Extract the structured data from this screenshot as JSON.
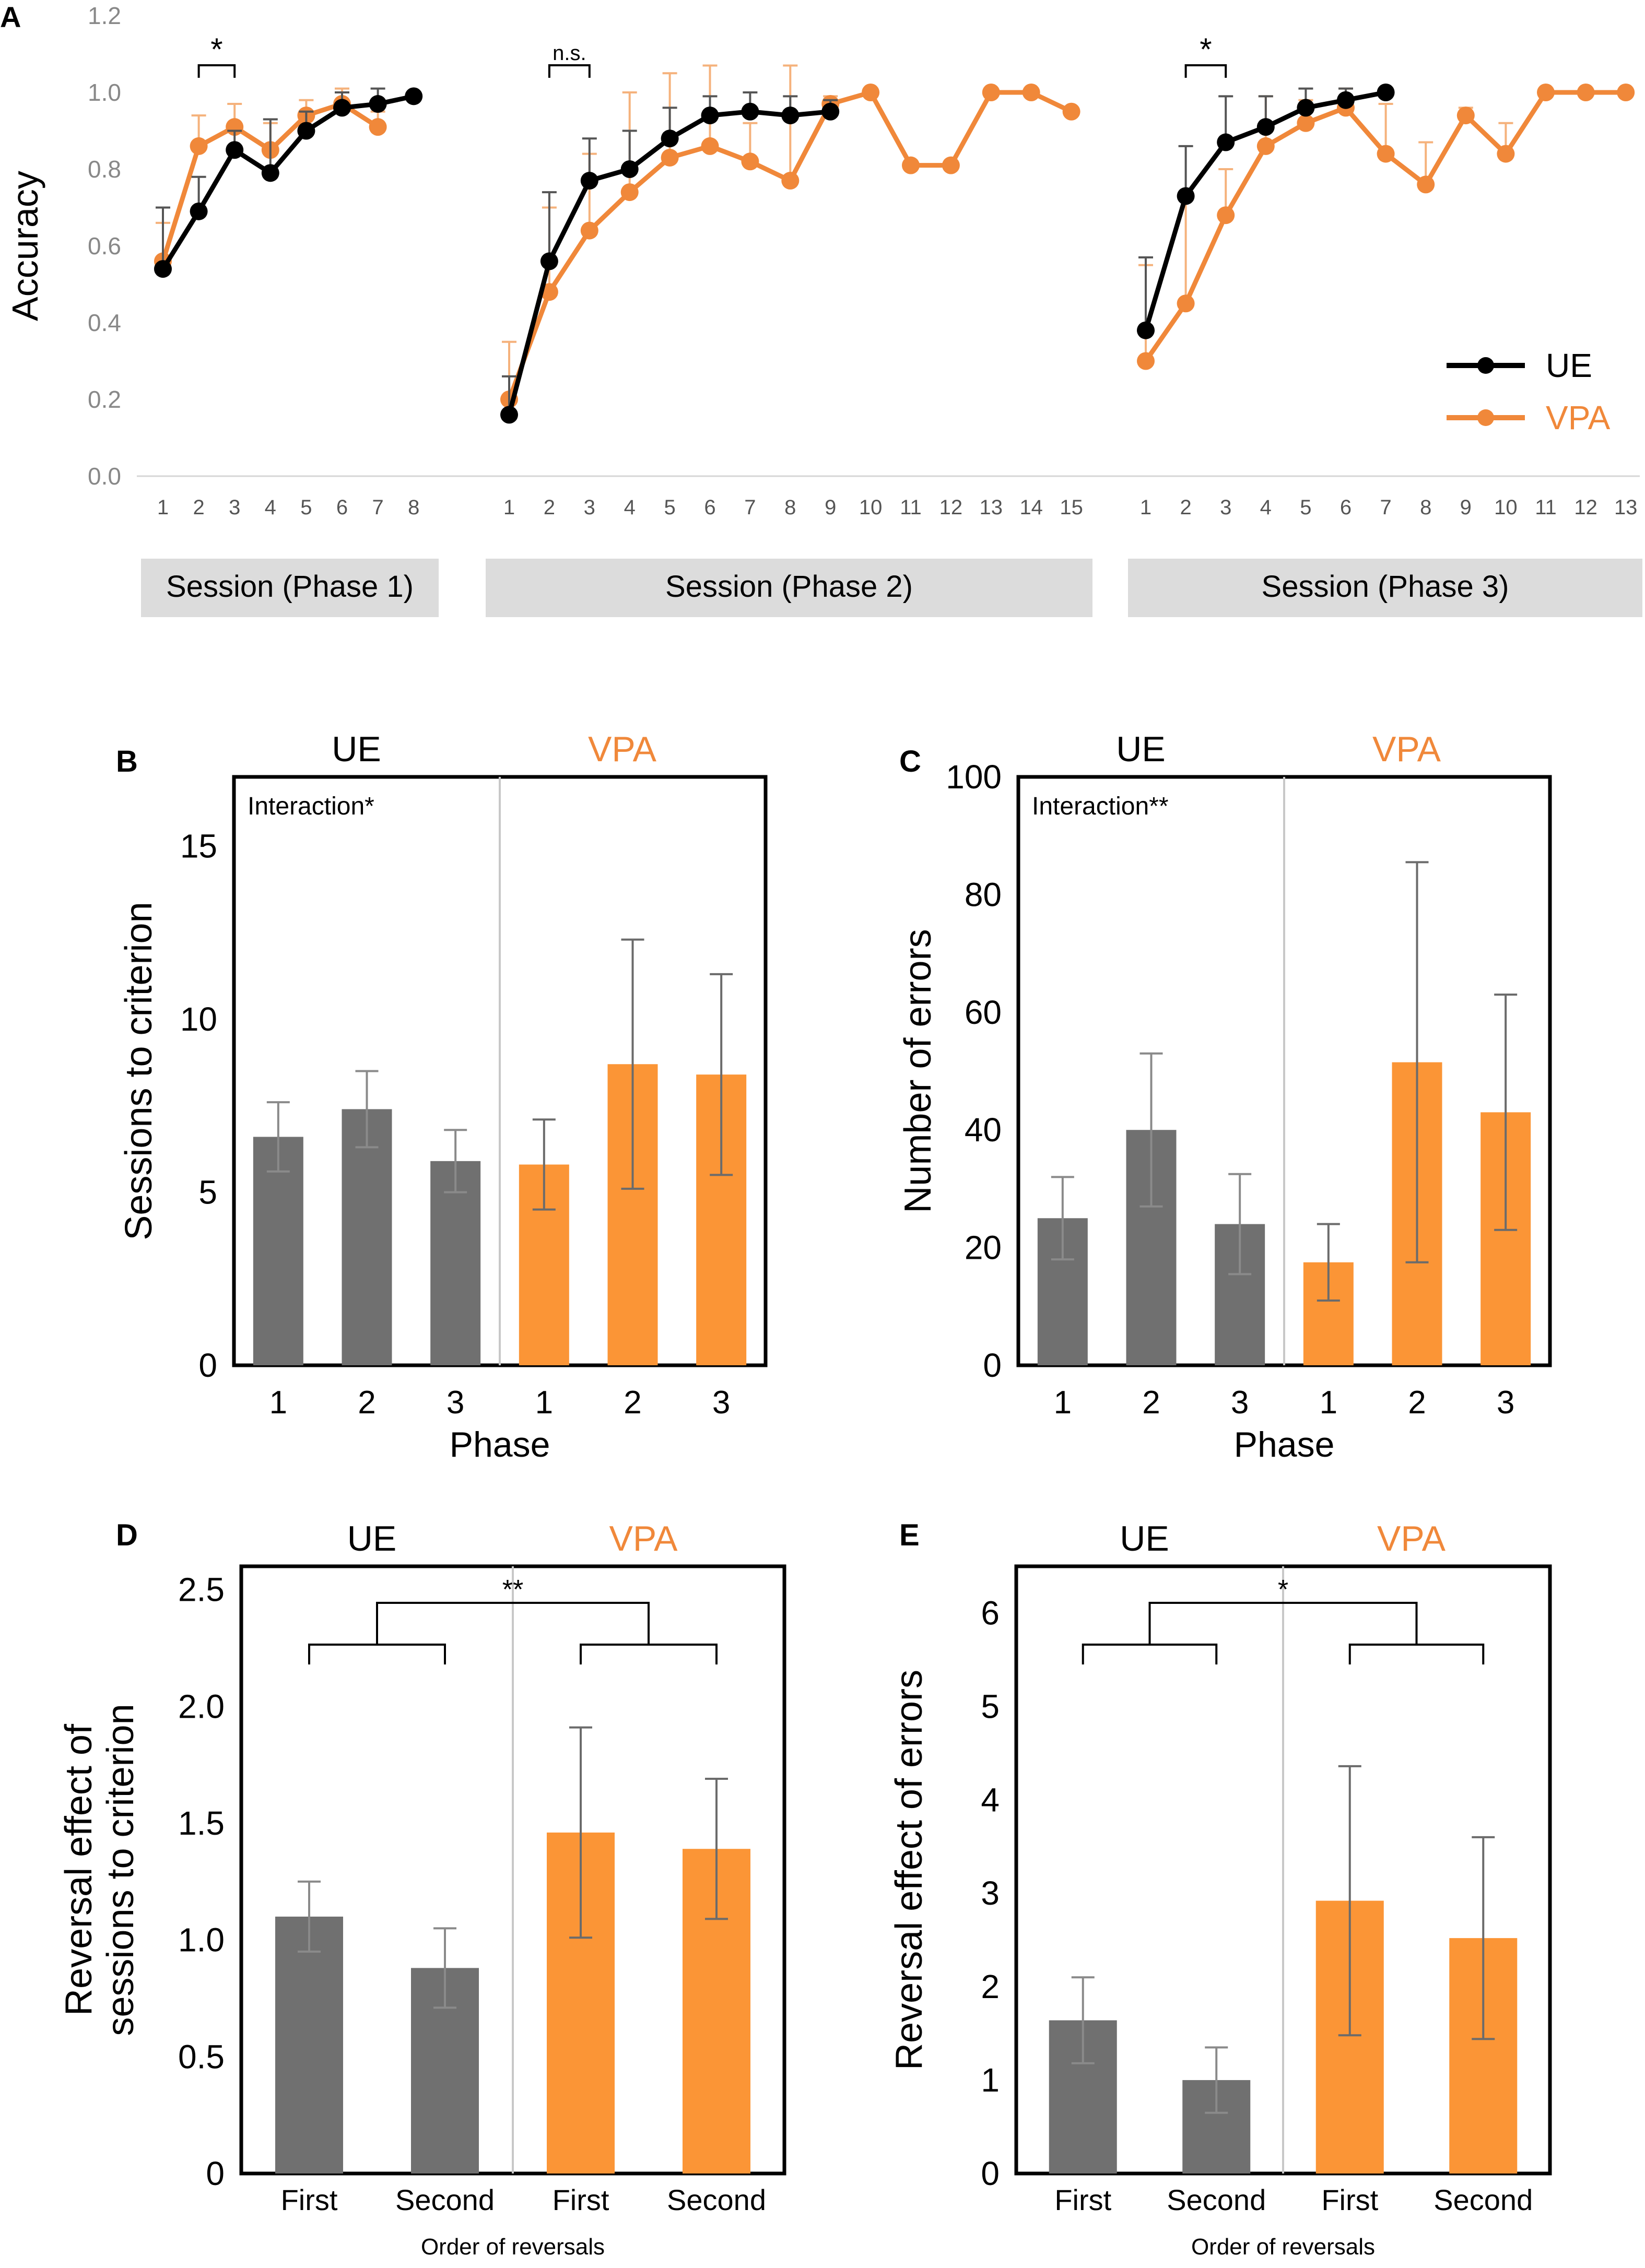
{
  "colors": {
    "ue": "#000000",
    "vpa": "#f0883a",
    "ue_bar": "#707070",
    "vpa_bar": "#fb9536",
    "grey_band": "#dcdcdc",
    "axis_grey": "#888888"
  },
  "panel_letters": {
    "a": "A",
    "b": "B",
    "c": "C",
    "d": "D",
    "e": "E"
  },
  "chart_data": [
    {
      "panel": "A",
      "type": "line",
      "ylabel": "Accuracy",
      "ylim": [
        0,
        1.2
      ],
      "yticks": [
        "0.0",
        "0.2",
        "0.4",
        "0.6",
        "0.8",
        "1.0",
        "1.2"
      ],
      "legend": {
        "ue": "UE",
        "vpa": "VPA"
      },
      "sessions": [
        {
          "label": "Session (Phase 1)",
          "x": [
            "1",
            "2",
            "3",
            "4",
            "5",
            "6",
            "7",
            "8"
          ],
          "series": [
            {
              "name": "UE",
              "values": [
                0.54,
                0.69,
                0.85,
                0.79,
                0.9,
                0.96,
                0.97,
                0.99
              ],
              "err": [
                0.16,
                0.09,
                0.05,
                0.14,
                0.05,
                0.04,
                0.04,
                0
              ]
            },
            {
              "name": "VPA",
              "values": [
                0.56,
                0.86,
                0.91,
                0.85,
                0.94,
                0.97,
                0.91,
                null
              ],
              "err": [
                0.1,
                0.08,
                0.06,
                0.07,
                0.04,
                0.04,
                0.04,
                null
              ]
            }
          ],
          "annotation": {
            "text": "*",
            "from": "2",
            "to": "3"
          }
        },
        {
          "label": "Session (Phase 2)",
          "x": [
            "1",
            "2",
            "3",
            "4",
            "5",
            "6",
            "7",
            "8",
            "9",
            "10",
            "11",
            "12",
            "13",
            "14",
            "15"
          ],
          "series": [
            {
              "name": "UE",
              "values": [
                0.16,
                0.56,
                0.77,
                0.8,
                0.88,
                0.94,
                0.95,
                0.94,
                0.95,
                null,
                null,
                null,
                null,
                null,
                null
              ],
              "err": [
                0.1,
                0.18,
                0.11,
                0.1,
                0.08,
                0.05,
                0.05,
                0.05,
                0.03,
                null,
                null,
                null,
                null,
                null,
                null
              ]
            },
            {
              "name": "VPA",
              "values": [
                0.2,
                0.48,
                0.64,
                0.74,
                0.83,
                0.86,
                0.82,
                0.77,
                0.97,
                1.0,
                0.81,
                0.81,
                1.0,
                1.0,
                0.95
              ],
              "err": [
                0.15,
                0.22,
                0.2,
                0.26,
                0.22,
                0.21,
                0.1,
                0.3,
                0.02,
                0,
                0,
                0,
                0,
                0,
                0
              ]
            }
          ],
          "annotation": {
            "text": "n.s.",
            "from": "2",
            "to": "3"
          }
        },
        {
          "label": "Session (Phase 3)",
          "x": [
            "1",
            "2",
            "3",
            "4",
            "5",
            "6",
            "7",
            "8",
            "9",
            "10",
            "11",
            "12",
            "13"
          ],
          "series": [
            {
              "name": "UE",
              "values": [
                0.38,
                0.73,
                0.87,
                0.91,
                0.96,
                0.98,
                1.0,
                null,
                null,
                null,
                null,
                null,
                null
              ],
              "err": [
                0.19,
                0.13,
                0.12,
                0.08,
                0.05,
                0.03,
                0,
                null,
                null,
                null,
                null,
                null,
                null
              ]
            },
            {
              "name": "VPA",
              "values": [
                0.3,
                0.45,
                0.68,
                0.86,
                0.92,
                0.96,
                0.84,
                0.76,
                0.94,
                0.84,
                1.0,
                1.0,
                1.0
              ],
              "err": [
                0.25,
                0.28,
                0.12,
                0.13,
                0.06,
                0.05,
                0.13,
                0.11,
                0.02,
                0.08,
                0,
                0,
                0
              ]
            }
          ],
          "annotation": {
            "text": "*",
            "from": "2",
            "to": "3"
          }
        }
      ]
    },
    {
      "panel": "B",
      "type": "bar",
      "ylabel": "Sessions to criterion",
      "xlabel": "Phase",
      "ylim": [
        0,
        17
      ],
      "yticks": [
        "0",
        "5",
        "10",
        "15"
      ],
      "group_labels": [
        "UE",
        "VPA"
      ],
      "categories": [
        "1",
        "2",
        "3",
        "1",
        "2",
        "3"
      ],
      "values": [
        6.6,
        7.4,
        5.9,
        5.8,
        8.7,
        8.4
      ],
      "err": [
        1.0,
        1.1,
        0.9,
        1.3,
        3.6,
        2.9
      ],
      "annotation": "Interaction*"
    },
    {
      "panel": "C",
      "type": "bar",
      "ylabel": "Number of errors",
      "xlabel": "Phase",
      "ylim": [
        0,
        100
      ],
      "yticks": [
        "0",
        "20",
        "40",
        "60",
        "80",
        "100"
      ],
      "group_labels": [
        "UE",
        "VPA"
      ],
      "categories": [
        "1",
        "2",
        "3",
        "1",
        "2",
        "3"
      ],
      "values": [
        25,
        40,
        24,
        17.5,
        51.5,
        43
      ],
      "err": [
        7,
        13,
        8.5,
        6.5,
        34,
        20
      ],
      "annotation": "Interaction**"
    },
    {
      "panel": "D",
      "type": "bar",
      "ylabel": "Reversal effect of sessions to criterion",
      "ylabel_lines": [
        "Reversal effect of",
        "sessions to criterion"
      ],
      "xlabel": "Order of reversals",
      "ylim": [
        0,
        2.6
      ],
      "yticks": [
        "0",
        "0.5",
        "1.0",
        "1.5",
        "2.0",
        "2.5"
      ],
      "group_labels": [
        "UE",
        "VPA"
      ],
      "categories": [
        "First",
        "Second",
        "First",
        "Second"
      ],
      "values": [
        1.1,
        0.88,
        1.46,
        1.39
      ],
      "err": [
        0.15,
        0.17,
        0.45,
        0.3
      ],
      "annotation": "**"
    },
    {
      "panel": "E",
      "type": "bar",
      "ylabel": "Reversal effect of errors",
      "xlabel": "Order of reversals",
      "ylim": [
        0,
        6.5
      ],
      "yticks": [
        "0",
        "1",
        "2",
        "3",
        "4",
        "5",
        "6"
      ],
      "group_labels": [
        "UE",
        "VPA"
      ],
      "categories": [
        "First",
        "Second",
        "First",
        "Second"
      ],
      "values": [
        1.64,
        1.0,
        2.92,
        2.52
      ],
      "err": [
        0.46,
        0.35,
        1.44,
        1.08
      ],
      "annotation": "*"
    }
  ]
}
